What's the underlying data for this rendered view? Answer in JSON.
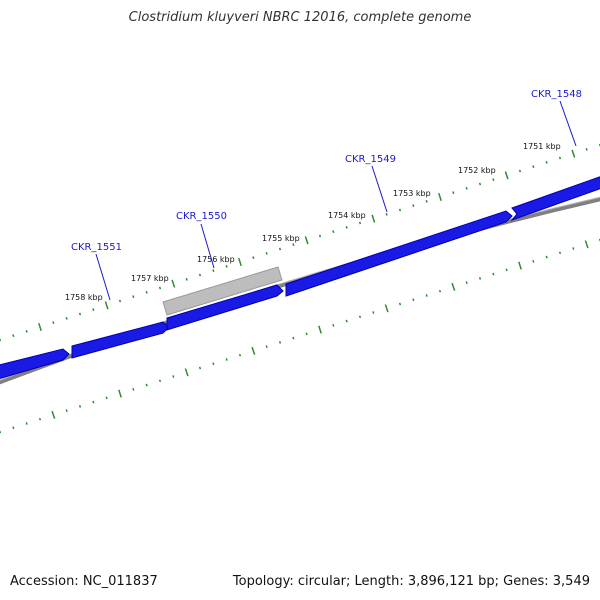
{
  "title": "Clostridium kluyveri NBRC 12016, complete genome",
  "footer": {
    "accession": "Accession: NC_011837",
    "topology": "Topology: circular; Length: 3,896,121 bp; Genes: 3,549"
  },
  "colors": {
    "gene_fill": "#1a1ae6",
    "gene_dark": "#0000aa",
    "selected_gene": "#b8b8b8",
    "backbone": "#808080",
    "tick_color": "#2e8b2e",
    "label_color": "#1a1acc"
  },
  "scale_labels": [
    {
      "kbp": 1758,
      "text": "1758 kbp"
    },
    {
      "kbp": 1757,
      "text": "1757 kbp"
    },
    {
      "kbp": 1756,
      "text": "1756 kbp"
    },
    {
      "kbp": 1755,
      "text": "1755 kbp"
    },
    {
      "kbp": 1754,
      "text": "1754 kbp"
    },
    {
      "kbp": 1753,
      "text": "1753 kbp"
    },
    {
      "kbp": 1752,
      "text": "1752 kbp"
    },
    {
      "kbp": 1751,
      "text": "1751 kbp"
    }
  ],
  "genes": [
    {
      "id": "CKR_1551",
      "label": "CKR_1551"
    },
    {
      "id": "CKR_1550",
      "label": "CKR_1550",
      "selected": true
    },
    {
      "id": "CKR_1549",
      "label": "CKR_1549"
    },
    {
      "id": "CKR_1548",
      "label": "CKR_1548"
    }
  ]
}
